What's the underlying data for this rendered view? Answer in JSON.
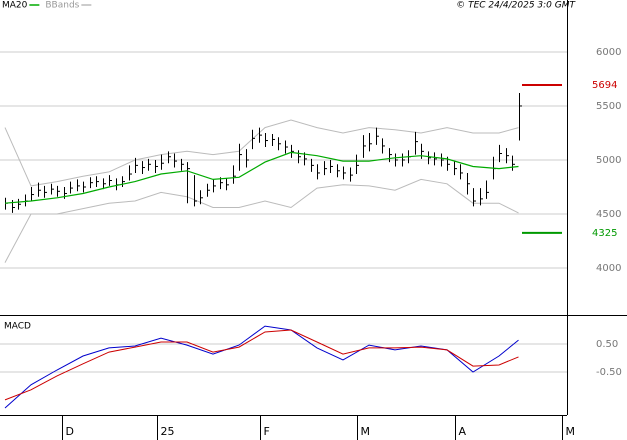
{
  "chart_data": [
    {
      "type": "ohlc",
      "credit": "© TEC 24/4/2025 3:0 GMT",
      "xlim": [
        -0.77,
        86.46
      ],
      "ylim": [
        3565,
        6481
      ],
      "yticks": [
        4000,
        4500,
        5000,
        5500,
        6000
      ],
      "grid": true,
      "bars": {
        "color": "#000000",
        "x": [
          0,
          1,
          2,
          3,
          4,
          5,
          6,
          7,
          8,
          9,
          10,
          11,
          12,
          13,
          14,
          15,
          16,
          17,
          18,
          19,
          20,
          21,
          22,
          23,
          24,
          25,
          26,
          27,
          28,
          29,
          30,
          31,
          32,
          33,
          34,
          35,
          36,
          37,
          38,
          39,
          40,
          41,
          42,
          43,
          44,
          45,
          46,
          47,
          48,
          49,
          50,
          51,
          52,
          53,
          54,
          55,
          56,
          57,
          58,
          59,
          60,
          61,
          62,
          63,
          64,
          65,
          66,
          67,
          68,
          69,
          70,
          71,
          72,
          73,
          74,
          75,
          76,
          77,
          78,
          79
        ],
        "high": [
          4650,
          4630,
          4640,
          4680,
          4750,
          4790,
          4760,
          4780,
          4760,
          4750,
          4800,
          4820,
          4800,
          4840,
          4850,
          4830,
          4860,
          4830,
          4850,
          4950,
          5020,
          4990,
          5010,
          5000,
          5050,
          5080,
          5060,
          5010,
          4980,
          4860,
          4720,
          4780,
          4820,
          4840,
          4830,
          4950,
          5150,
          5100,
          5280,
          5300,
          5250,
          5240,
          5210,
          5180,
          5140,
          5090,
          5070,
          5010,
          4960,
          4990,
          5000,
          4960,
          4940,
          4930,
          5050,
          5230,
          5250,
          5300,
          5200,
          5110,
          5060,
          5060,
          5090,
          5260,
          5150,
          5080,
          5070,
          5060,
          5030,
          4990,
          4960,
          4880,
          4740,
          4740,
          4810,
          5030,
          5140,
          5110,
          5040,
          5620
        ],
        "low": [
          4540,
          4510,
          4540,
          4570,
          4620,
          4660,
          4650,
          4680,
          4660,
          4640,
          4690,
          4710,
          4700,
          4740,
          4750,
          4730,
          4760,
          4720,
          4750,
          4810,
          4880,
          4870,
          4900,
          4880,
          4910,
          4970,
          4930,
          4900,
          4600,
          4570,
          4590,
          4660,
          4700,
          4730,
          4720,
          4780,
          4900,
          4930,
          5100,
          5160,
          5120,
          5130,
          5090,
          5060,
          5020,
          4970,
          4950,
          4890,
          4820,
          4860,
          4880,
          4840,
          4820,
          4800,
          4870,
          5020,
          5080,
          5140,
          5060,
          4980,
          4940,
          4940,
          4970,
          5050,
          5010,
          4960,
          4950,
          4940,
          4900,
          4860,
          4820,
          4680,
          4570,
          4580,
          4640,
          4820,
          4980,
          4970,
          4900,
          5180
        ],
        "close": [
          4600,
          4560,
          4590,
          4620,
          4680,
          4720,
          4700,
          4730,
          4710,
          4690,
          4740,
          4760,
          4750,
          4790,
          4800,
          4780,
          4810,
          4770,
          4800,
          4870,
          4950,
          4930,
          4960,
          4940,
          4970,
          5030,
          4990,
          4960,
          4920,
          4620,
          4650,
          4720,
          4760,
          4790,
          4770,
          4850,
          5050,
          5000,
          5200,
          5230,
          5180,
          5190,
          5150,
          5120,
          5080,
          5030,
          5010,
          4950,
          4880,
          4920,
          4940,
          4900,
          4880,
          4860,
          4950,
          5130,
          5150,
          5220,
          5130,
          5050,
          5000,
          5000,
          5030,
          5170,
          5080,
          5020,
          5010,
          5000,
          4960,
          4920,
          4880,
          4780,
          4620,
          4640,
          4700,
          4920,
          5060,
          5040,
          4960,
          5500
        ]
      },
      "series": [
        {
          "name": "MA20",
          "color": "#00aa00",
          "x": [
            0,
            4,
            8,
            12,
            16,
            20,
            24,
            28,
            32,
            36,
            40,
            44,
            48,
            52,
            56,
            60,
            64,
            68,
            72,
            76,
            79
          ],
          "values": [
            4600,
            4620,
            4650,
            4690,
            4750,
            4800,
            4870,
            4900,
            4820,
            4840,
            4980,
            5070,
            5040,
            4990,
            4990,
            5020,
            5040,
            5010,
            4940,
            4920,
            4940
          ]
        },
        {
          "name": "BBands",
          "color": "#bbbbbb",
          "x": [
            0,
            4,
            8,
            12,
            16,
            20,
            24,
            28,
            32,
            36,
            40,
            44,
            48,
            52,
            56,
            60,
            64,
            68,
            72,
            76,
            79
          ],
          "upper": [
            5300,
            4760,
            4800,
            4850,
            4890,
            5000,
            5050,
            5080,
            5050,
            5080,
            5300,
            5370,
            5300,
            5250,
            5300,
            5280,
            5250,
            5300,
            5250,
            5250,
            5300
          ],
          "lower": [
            4050,
            4500,
            4500,
            4550,
            4600,
            4620,
            4700,
            4660,
            4560,
            4560,
            4620,
            4560,
            4740,
            4770,
            4760,
            4720,
            4820,
            4780,
            4600,
            4600,
            4510
          ]
        }
      ],
      "levels": [
        {
          "value": 5694,
          "label": "5694",
          "color": "#cc0000"
        },
        {
          "value": 4325,
          "label": "4325",
          "color": "#009900"
        }
      ]
    },
    {
      "type": "line",
      "title": "MACD",
      "xlim": [
        -0.77,
        86.46
      ],
      "ylim": [
        -2.04,
        1.43
      ],
      "yticks": [
        {
          "value": 0.5,
          "label": "0.50"
        },
        {
          "value": -0.5,
          "label": "-0.50"
        }
      ],
      "xticks": [
        {
          "value": 8.8,
          "label": "D"
        },
        {
          "value": 23.4,
          "label": "25"
        },
        {
          "value": 39.2,
          "label": "F"
        },
        {
          "value": 54.2,
          "label": "M"
        },
        {
          "value": 69.2,
          "label": "A"
        },
        {
          "value": 85.7,
          "label": "M"
        }
      ],
      "series": [
        {
          "color": "#0000cc",
          "x": [
            0,
            4,
            8,
            12,
            16,
            20,
            24,
            28,
            32,
            36,
            40,
            44,
            48,
            52,
            56,
            60,
            64,
            68,
            72,
            76,
            79
          ],
          "values": [
            -1.79,
            -0.96,
            -0.43,
            0.07,
            0.36,
            0.43,
            0.71,
            0.46,
            0.14,
            0.46,
            1.14,
            1.0,
            0.36,
            -0.07,
            0.46,
            0.29,
            0.43,
            0.29,
            -0.5,
            0.07,
            0.64
          ]
        },
        {
          "color": "#cc0000",
          "x": [
            0,
            4,
            8,
            12,
            16,
            20,
            24,
            28,
            32,
            36,
            40,
            44,
            48,
            52,
            56,
            60,
            64,
            68,
            72,
            76,
            79
          ],
          "values": [
            -1.5,
            -1.14,
            -0.64,
            -0.21,
            0.21,
            0.39,
            0.57,
            0.57,
            0.21,
            0.39,
            0.93,
            1.0,
            0.57,
            0.14,
            0.36,
            0.36,
            0.39,
            0.29,
            -0.29,
            -0.25,
            0.04
          ]
        }
      ]
    }
  ]
}
